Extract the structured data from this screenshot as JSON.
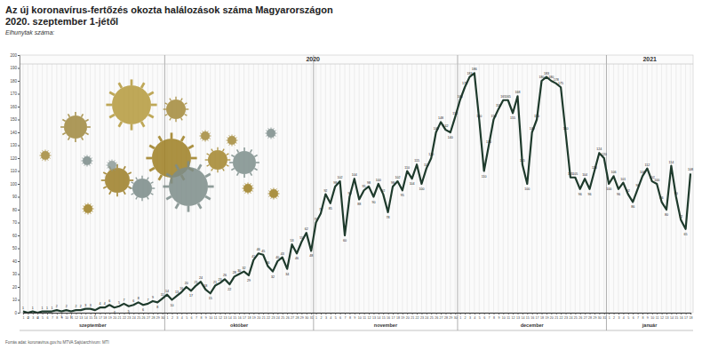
{
  "chart_data": {
    "type": "line",
    "title": "Az új koronavírus-fertőzés okozta halálozások száma Magyarországon",
    "subtitle": "2020. szeptember 1-jétől",
    "y_label": "Elhunytak száma:",
    "source": "Forrás adat: koronavirus.gov.hu   MTVA Sajtóarchívum: MTI",
    "categories": [
      "1",
      "2",
      "3",
      "4",
      "5",
      "6",
      "7",
      "8",
      "9",
      "10",
      "11",
      "12",
      "13",
      "14",
      "15",
      "16",
      "17",
      "18",
      "19",
      "20",
      "21",
      "22",
      "23",
      "24",
      "25",
      "26",
      "27",
      "28",
      "29",
      "30",
      "1",
      "2",
      "3",
      "4",
      "5",
      "6",
      "7",
      "8",
      "9",
      "10",
      "11",
      "12",
      "13",
      "14",
      "15",
      "16",
      "17",
      "18",
      "19",
      "20",
      "21",
      "22",
      "23",
      "24",
      "25",
      "26",
      "27",
      "28",
      "29",
      "30",
      "31",
      "1",
      "2",
      "3",
      "4",
      "5",
      "6",
      "7",
      "8",
      "9",
      "10",
      "11",
      "12",
      "13",
      "14",
      "15",
      "16",
      "17",
      "18",
      "19",
      "20",
      "21",
      "22",
      "23",
      "24",
      "25",
      "26",
      "27",
      "28",
      "29",
      "30",
      "1",
      "2",
      "3",
      "4",
      "5",
      "6",
      "7",
      "8",
      "9",
      "10",
      "11",
      "12",
      "13",
      "14",
      "15",
      "16",
      "17",
      "18",
      "19",
      "20",
      "21",
      "22",
      "23",
      "24",
      "25",
      "26",
      "27",
      "28",
      "29",
      "30",
      "31",
      "1",
      "2",
      "3",
      "4",
      "5",
      "6",
      "7",
      "8",
      "9",
      "10",
      "11",
      "12",
      "13",
      "14",
      "15",
      "16",
      "17",
      "18"
    ],
    "periods": [
      {
        "year": "2020",
        "months": [
          "szeptember",
          "október",
          "november",
          "december"
        ]
      },
      {
        "year": "2021",
        "months": [
          "január"
        ]
      }
    ],
    "series": [
      {
        "name": "Elhunytak",
        "color": "#1e3a2c",
        "values": [
          1,
          0,
          1,
          0,
          1,
          1,
          1,
          2,
          1,
          2,
          1,
          2,
          2,
          3,
          3,
          2,
          4,
          4,
          6,
          4,
          5,
          7,
          5,
          6,
          8,
          6,
          7,
          9,
          8,
          11,
          14,
          10,
          13,
          16,
          20,
          17,
          21,
          24,
          18,
          15,
          21,
          23,
          26,
          22,
          28,
          30,
          32,
          29,
          41,
          46,
          45,
          36,
          32,
          40,
          43,
          34,
          53,
          46,
          55,
          62,
          48,
          70,
          77,
          92,
          85,
          98,
          102,
          60,
          90,
          104,
          88,
          95,
          98,
          90,
          100,
          92,
          78,
          98,
          102,
          95,
          110,
          104,
          115,
          100,
          112,
          120,
          140,
          148,
          142,
          140,
          152,
          165,
          175,
          183,
          186,
          150,
          110,
          130,
          150,
          158,
          165,
          165,
          155,
          168,
          115,
          100,
          140,
          150,
          180,
          183,
          180,
          178,
          175,
          140,
          105,
          105,
          96,
          104,
          96,
          110,
          124,
          120,
          100,
          106,
          96,
          101,
          92,
          86,
          96,
          106,
          112,
          102,
          100,
          86,
          80,
          114,
          90,
          72,
          65,
          108
        ]
      }
    ],
    "ylim": [
      0,
      200
    ],
    "yticks": [
      0,
      10,
      20,
      30,
      40,
      50,
      60,
      70,
      80,
      90,
      100,
      110,
      120,
      130,
      140,
      150,
      160,
      170,
      180,
      190,
      200
    ],
    "grid": true,
    "data_labels": true
  }
}
